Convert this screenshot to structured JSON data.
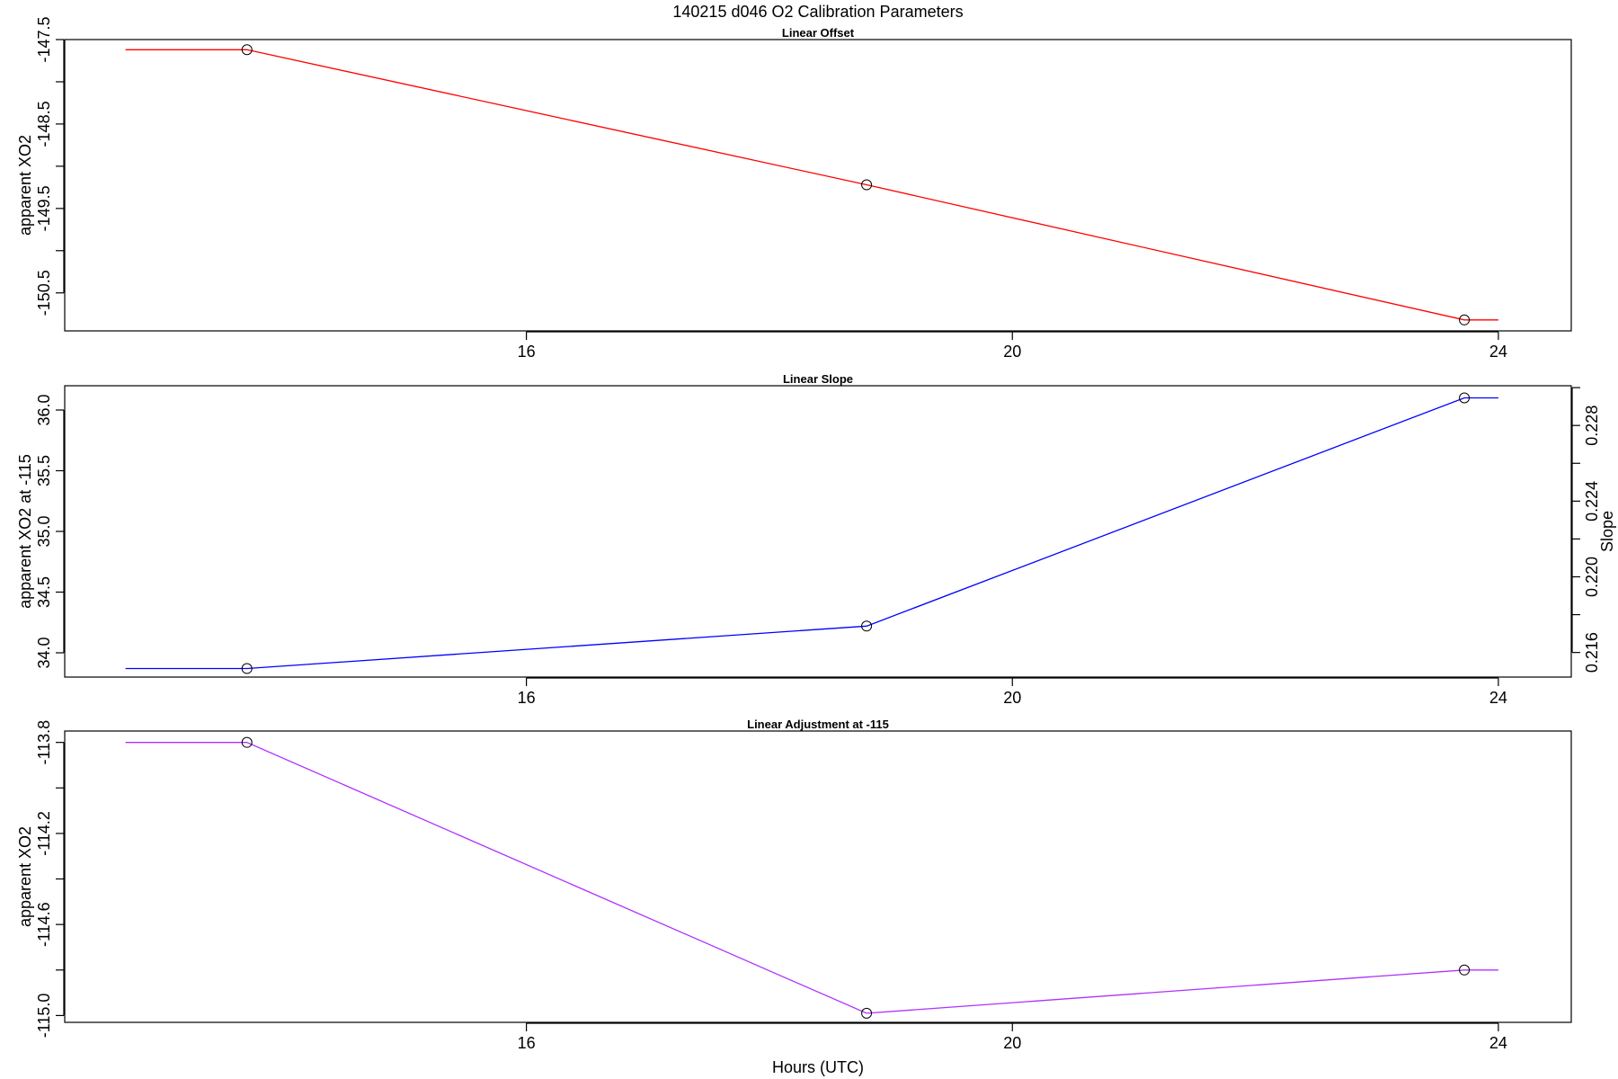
{
  "figure_title": "140215   d046   O2 Calibration Parameters",
  "xlabel": "Hours (UTC)",
  "chart_data": [
    {
      "type": "line",
      "title": "Linear Offset",
      "ylabel": "apparent XO2",
      "xlim": [
        12.2,
        24.6
      ],
      "ylim": [
        -150.95,
        -147.5
      ],
      "xticks": [
        16,
        20,
        24
      ],
      "xtick_labels": [
        "16",
        "20",
        "24"
      ],
      "yticks": [
        -147.5,
        -148.0,
        -148.5,
        -149.0,
        -149.5,
        -150.0,
        -150.5
      ],
      "ytick_labels": [
        "-147.5",
        "",
        "-148.5",
        "",
        "-149.5",
        "",
        "-150.5"
      ],
      "series": [
        {
          "color": "#ff0000",
          "x": [
            12.7,
            13.7,
            18.8,
            23.72,
            24.0
          ],
          "y": [
            -147.62,
            -147.62,
            -149.22,
            -150.82,
            -150.82
          ],
          "markers": [
            1,
            2,
            3
          ]
        }
      ]
    },
    {
      "type": "line",
      "title": "Linear Slope",
      "ylabel": "apparent XO2 at -115",
      "ylabel_right": "Slope",
      "xlim": [
        12.2,
        24.6
      ],
      "ylim": [
        33.8,
        36.2
      ],
      "xticks": [
        16,
        20,
        24
      ],
      "xtick_labels": [
        "16",
        "20",
        "24"
      ],
      "yticks": [
        34.0,
        34.5,
        35.0,
        35.5,
        36.0
      ],
      "ytick_labels": [
        "34.0",
        "34.5",
        "35.0",
        "35.5",
        "36.0"
      ],
      "right_axis": {
        "ylim": [
          0.2147,
          0.2301
        ],
        "ticks": [
          0.216,
          0.218,
          0.22,
          0.222,
          0.224,
          0.226,
          0.228,
          0.23
        ],
        "tick_labels": [
          "0.216",
          "",
          "0.220",
          "",
          "0.224",
          "",
          "0.228",
          ""
        ]
      },
      "series": [
        {
          "color": "#0000ff",
          "x": [
            12.7,
            13.7,
            18.8,
            23.72,
            24.0
          ],
          "y": [
            33.87,
            33.87,
            34.22,
            36.1,
            36.1
          ],
          "markers": [
            1,
            2,
            3
          ]
        }
      ]
    },
    {
      "type": "line",
      "title": "Linear Adjustment at -115",
      "ylabel": "apparent XO2",
      "xlim": [
        12.2,
        24.6
      ],
      "ylim": [
        -115.03,
        -113.75
      ],
      "xticks": [
        16,
        20,
        24
      ],
      "xtick_labels": [
        "16",
        "20",
        "24"
      ],
      "yticks": [
        -113.8,
        -114.0,
        -114.2,
        -114.4,
        -114.6,
        -114.8,
        -115.0
      ],
      "ytick_labels": [
        "-113.8",
        "",
        "-114.2",
        "",
        "-114.6",
        "",
        "-115.0"
      ],
      "series": [
        {
          "color": "#b030ff",
          "x": [
            12.7,
            13.7,
            18.8,
            23.72,
            24.0
          ],
          "y": [
            -113.8,
            -113.8,
            -114.99,
            -114.8,
            -114.8
          ],
          "markers": [
            1,
            2,
            3
          ]
        }
      ]
    }
  ]
}
